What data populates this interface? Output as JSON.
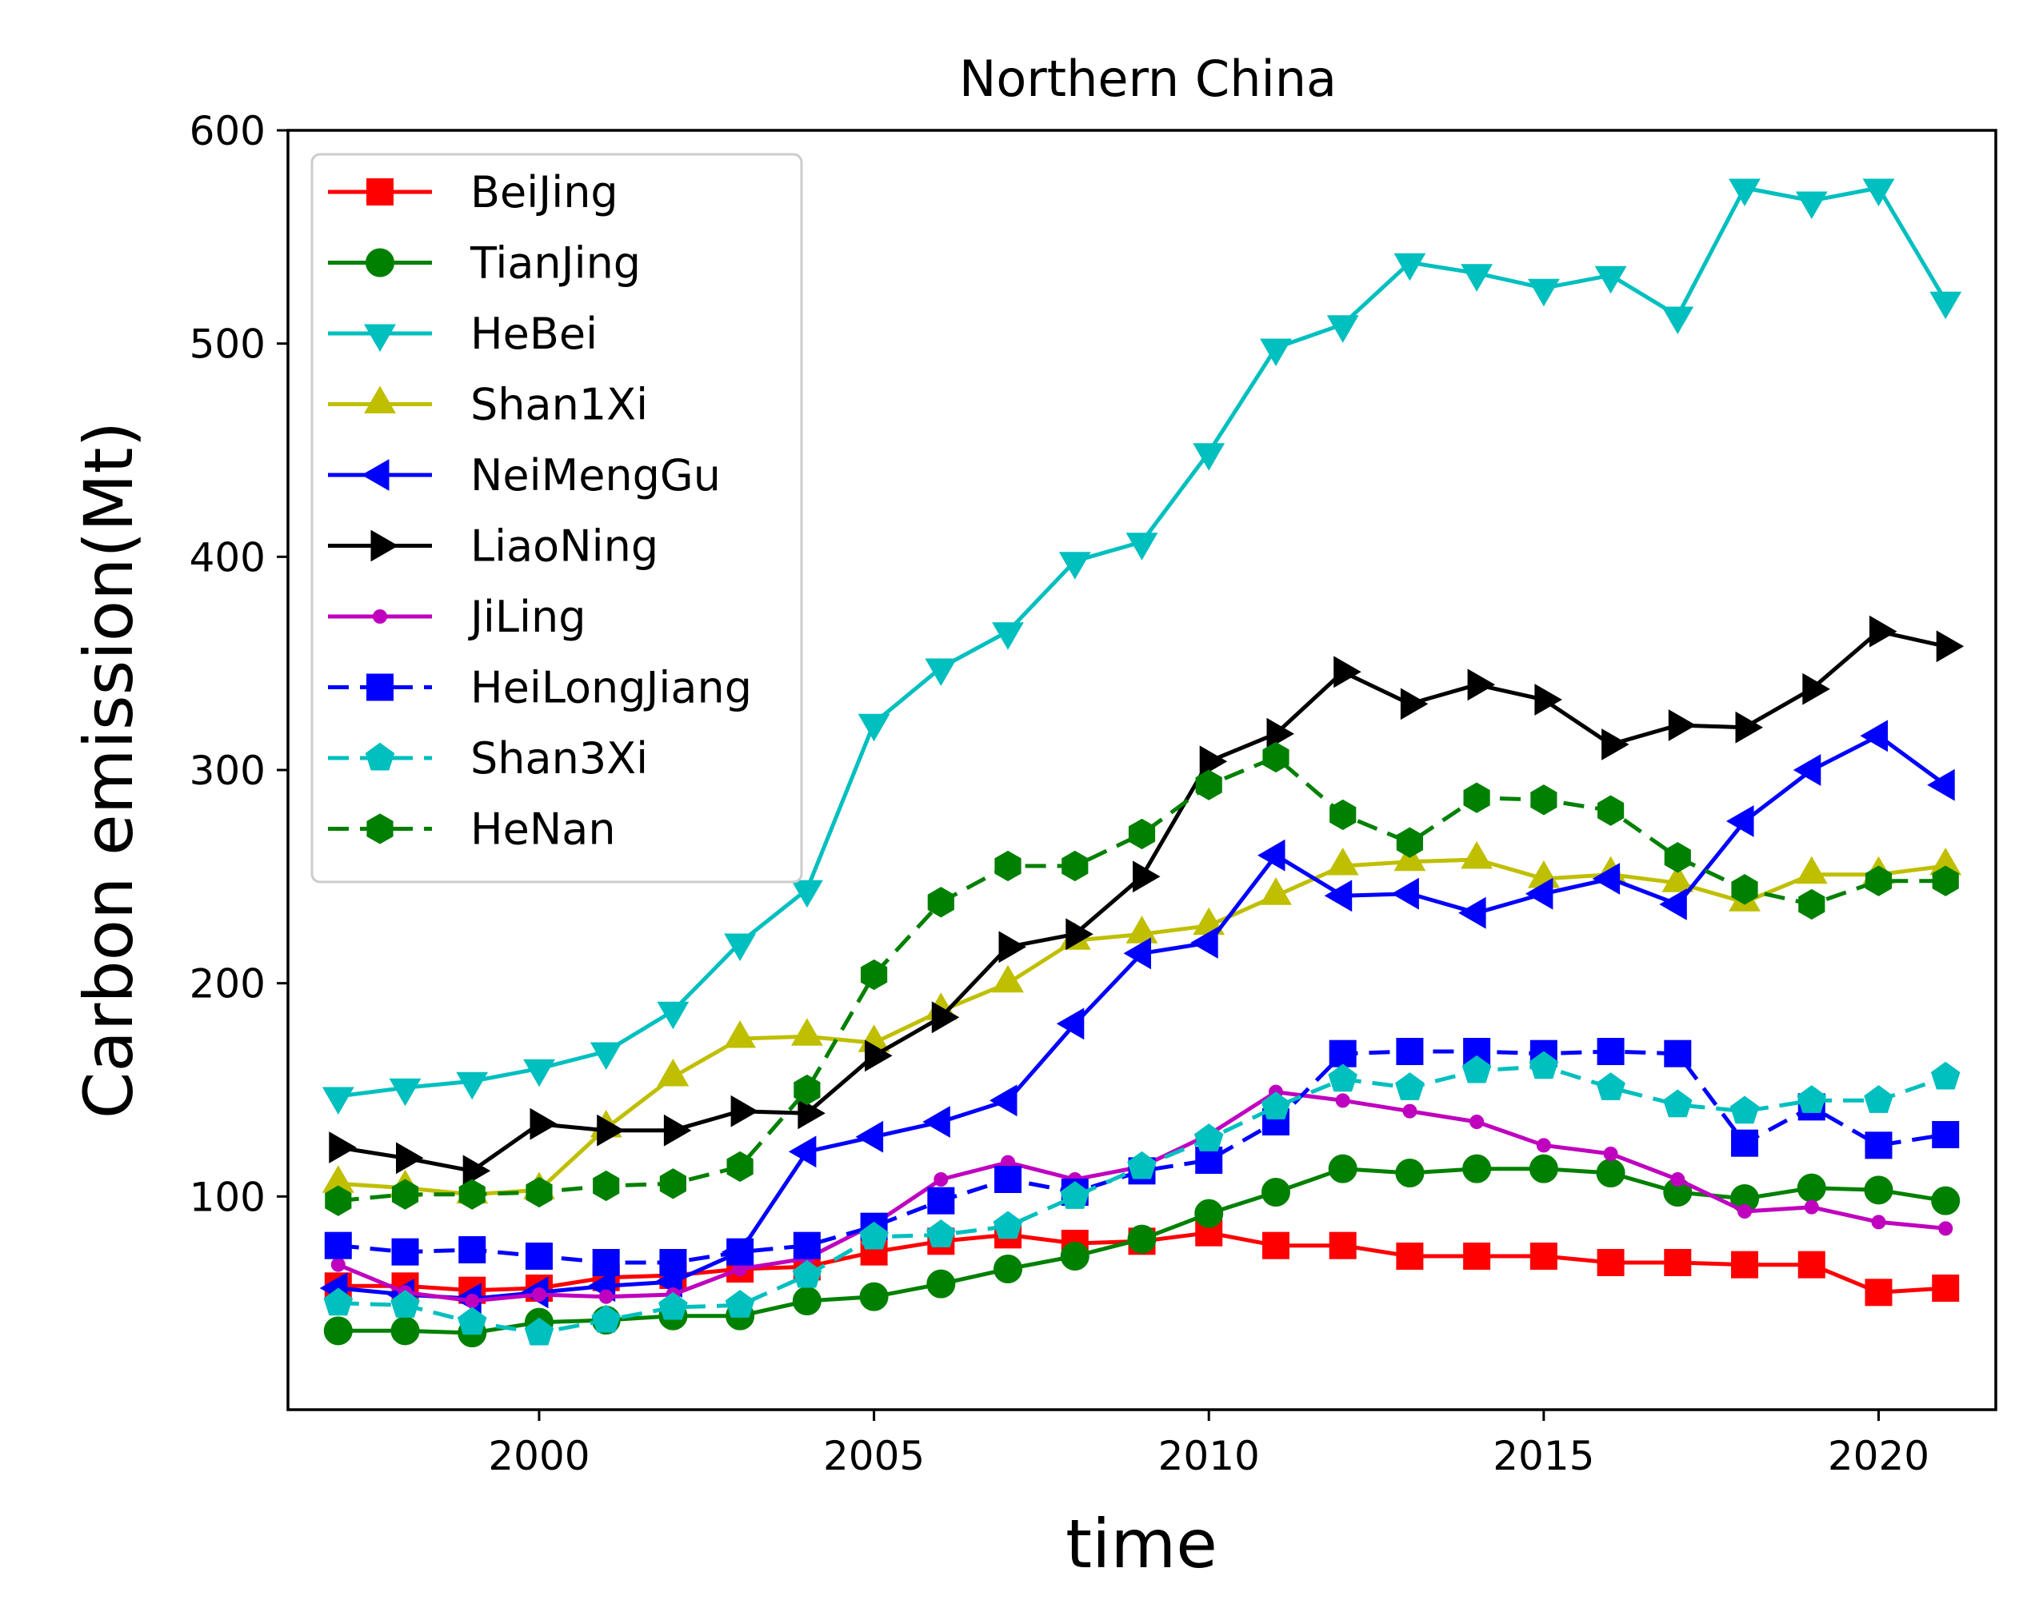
{
  "chart_data": {
    "type": "line",
    "title": "Northern China",
    "xlabel": "time",
    "ylabel": "Carbon emission(Mt)",
    "xlim": [
      1996.25,
      2021.75
    ],
    "ylim": [
      0,
      600
    ],
    "xticks": [
      2000,
      2005,
      2010,
      2015,
      2020
    ],
    "yticks": [
      100,
      200,
      300,
      400,
      500,
      600
    ],
    "grid": false,
    "legend_position": "upper-left",
    "x": [
      1997,
      1998,
      1999,
      2000,
      2001,
      2002,
      2003,
      2004,
      2005,
      2006,
      2007,
      2008,
      2009,
      2010,
      2011,
      2012,
      2013,
      2014,
      2015,
      2016,
      2017,
      2018,
      2019,
      2020,
      2021
    ],
    "series": [
      {
        "name": "BeiJing",
        "color": "#ff0000",
        "marker": "square",
        "dash": "solid",
        "values": [
          58,
          58,
          56,
          57,
          62,
          63,
          66,
          67,
          74,
          79,
          82,
          78,
          79,
          83,
          77,
          77,
          72,
          72,
          72,
          69,
          69,
          68,
          68,
          55,
          57
        ]
      },
      {
        "name": "TianJing",
        "color": "#008000",
        "marker": "circle",
        "dash": "solid",
        "values": [
          37,
          37,
          36,
          41,
          42,
          44,
          44,
          51,
          53,
          59,
          66,
          72,
          80,
          92,
          102,
          113,
          111,
          113,
          113,
          111,
          102,
          99,
          104,
          103,
          98
        ]
      },
      {
        "name": "HeBei",
        "color": "#00bfbf",
        "marker": "triangle-down",
        "dash": "solid",
        "values": [
          147,
          151,
          154,
          160,
          168,
          187,
          219,
          244,
          322,
          348,
          365,
          398,
          407,
          449,
          498,
          509,
          538,
          533,
          526,
          532,
          513,
          573,
          567,
          573,
          520
        ]
      },
      {
        "name": "Shan1Xi",
        "color": "#bfbf00",
        "marker": "triangle-up",
        "dash": "solid",
        "values": [
          106,
          104,
          101,
          103,
          132,
          156,
          174,
          175,
          172,
          187,
          200,
          220,
          223,
          227,
          241,
          255,
          257,
          258,
          249,
          251,
          247,
          238,
          251,
          251,
          255
        ]
      },
      {
        "name": "NeiMengGu",
        "color": "#0000ff",
        "marker": "triangle-left",
        "dash": "solid",
        "values": [
          57,
          54,
          52,
          55,
          58,
          60,
          74,
          121,
          128,
          135,
          145,
          181,
          214,
          219,
          260,
          241,
          242,
          233,
          242,
          249,
          237,
          276,
          300,
          316,
          293
        ]
      },
      {
        "name": "LiaoNing",
        "color": "#000000",
        "marker": "triangle-right",
        "dash": "solid",
        "values": [
          123,
          118,
          112,
          134,
          131,
          131,
          140,
          139,
          166,
          184,
          217,
          223,
          250,
          304,
          317,
          346,
          331,
          340,
          333,
          312,
          321,
          320,
          338,
          365,
          358
        ]
      },
      {
        "name": "JiLing",
        "color": "#bf00bf",
        "marker": "point",
        "dash": "solid",
        "values": [
          68,
          55,
          51,
          54,
          53,
          54,
          66,
          71,
          87,
          108,
          116,
          108,
          114,
          129,
          149,
          145,
          140,
          135,
          124,
          120,
          108,
          93,
          95,
          88,
          85
        ]
      },
      {
        "name": "HeiLongJiang",
        "color": "#0000ff",
        "marker": "square",
        "dash": "dashed",
        "values": [
          77,
          74,
          75,
          72,
          69,
          69,
          74,
          77,
          86,
          98,
          108,
          102,
          112,
          117,
          135,
          167,
          168,
          168,
          167,
          168,
          167,
          125,
          142,
          124,
          129
        ]
      },
      {
        "name": "Shan3Xi",
        "color": "#00bfbf",
        "marker": "pentagon",
        "dash": "dashed",
        "values": [
          50,
          49,
          41,
          36,
          42,
          48,
          49,
          63,
          81,
          82,
          86,
          100,
          114,
          127,
          142,
          155,
          151,
          159,
          161,
          151,
          143,
          140,
          145,
          145,
          156
        ]
      },
      {
        "name": "HeNan",
        "color": "#008000",
        "marker": "hexagon",
        "dash": "dashed",
        "values": [
          98,
          101,
          101,
          102,
          105,
          106,
          114,
          150,
          204,
          238,
          255,
          255,
          270,
          293,
          306,
          279,
          266,
          287,
          286,
          281,
          259,
          244,
          237,
          248,
          248
        ]
      }
    ]
  }
}
